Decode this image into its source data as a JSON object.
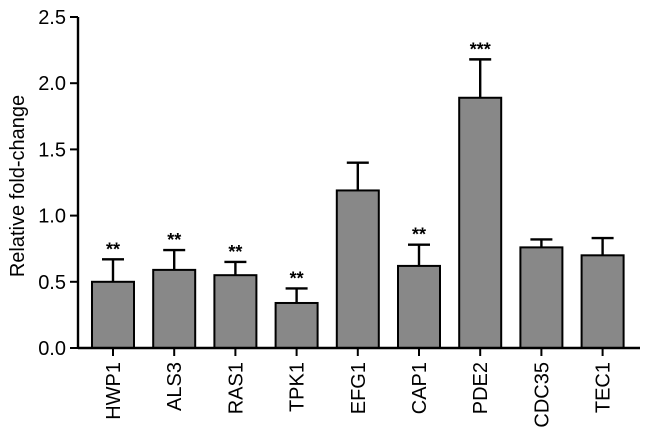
{
  "chart_data": {
    "type": "bar",
    "title": "",
    "xlabel": "",
    "ylabel": "Relative fold-change",
    "ylim": [
      0,
      2.5
    ],
    "yticks": [
      "0.0",
      "0.5",
      "1.0",
      "1.5",
      "2.0",
      "2.5"
    ],
    "categories": [
      "HWP1",
      "ALS3",
      "RAS1",
      "TPK1",
      "EFG1",
      "CAP1",
      "PDE2",
      "CDC35",
      "TEC1"
    ],
    "values": [
      0.5,
      0.59,
      0.55,
      0.34,
      1.19,
      0.62,
      1.89,
      0.76,
      0.7
    ],
    "errors": [
      0.17,
      0.15,
      0.1,
      0.11,
      0.21,
      0.16,
      0.29,
      0.06,
      0.13
    ],
    "significance": [
      "**",
      "**",
      "**",
      "**",
      "",
      "**",
      "***",
      "",
      ""
    ],
    "bar_color": "#888888",
    "grid": false,
    "legend": "none"
  }
}
